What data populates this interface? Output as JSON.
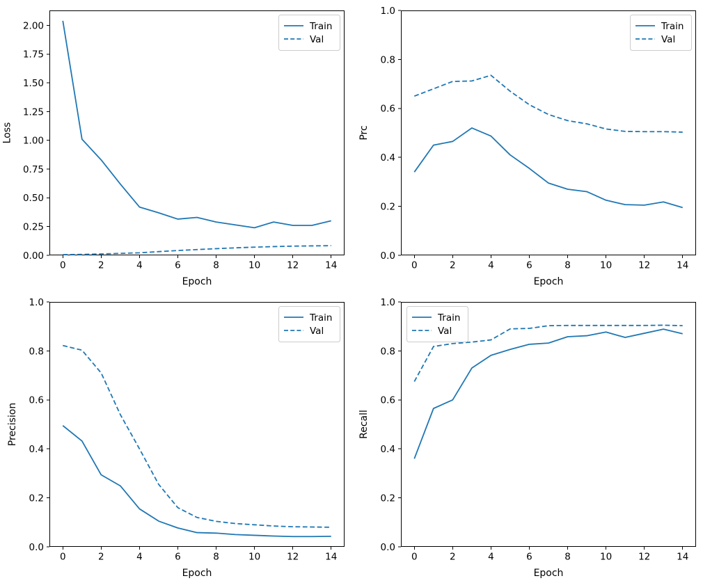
{
  "figure": {
    "background": "#ffffff",
    "text_color": "#000000",
    "spine_color": "#000000",
    "legend_edge_color": "#cccccc",
    "legend_face_color": "#ffffff"
  },
  "series_color": "#1f77b4",
  "chart_data": [
    {
      "type": "line",
      "title": "",
      "xlabel": "Epoch",
      "ylabel": "Loss",
      "legend_loc": "upper right",
      "grid": false,
      "xlim": [
        -0.7,
        14.7
      ],
      "ylim": [
        0,
        2.13
      ],
      "xticks": [
        0,
        2,
        4,
        6,
        8,
        10,
        12,
        14
      ],
      "xtick_labels": [
        "0",
        "2",
        "4",
        "6",
        "8",
        "10",
        "12",
        "14"
      ],
      "yticks": [
        0.0,
        0.25,
        0.5,
        0.75,
        1.0,
        1.25,
        1.5,
        1.75,
        2.0
      ],
      "ytick_labels": [
        "0.00",
        "0.25",
        "0.50",
        "0.75",
        "1.00",
        "1.25",
        "1.50",
        "1.75",
        "2.00"
      ],
      "x": [
        0,
        1,
        2,
        3,
        4,
        5,
        6,
        7,
        8,
        9,
        10,
        11,
        12,
        13,
        14
      ],
      "series": [
        {
          "name": "Train",
          "style": "solid",
          "values": [
            2.04,
            1.01,
            0.83,
            0.62,
            0.42,
            0.37,
            0.315,
            0.33,
            0.29,
            0.265,
            0.24,
            0.29,
            0.26,
            0.26,
            0.3
          ]
        },
        {
          "name": "Val",
          "style": "dashed",
          "values": [
            0.006,
            0.008,
            0.012,
            0.017,
            0.022,
            0.032,
            0.042,
            0.05,
            0.058,
            0.065,
            0.071,
            0.076,
            0.08,
            0.082,
            0.084
          ]
        }
      ]
    },
    {
      "type": "line",
      "title": "",
      "xlabel": "Epoch",
      "ylabel": "Prc",
      "legend_loc": "upper right",
      "grid": false,
      "xlim": [
        -0.7,
        14.7
      ],
      "ylim": [
        0,
        1
      ],
      "xticks": [
        0,
        2,
        4,
        6,
        8,
        10,
        12,
        14
      ],
      "xtick_labels": [
        "0",
        "2",
        "4",
        "6",
        "8",
        "10",
        "12",
        "14"
      ],
      "yticks": [
        0.0,
        0.2,
        0.4,
        0.6,
        0.8,
        1.0
      ],
      "ytick_labels": [
        "0.0",
        "0.2",
        "0.4",
        "0.6",
        "0.8",
        "1.0"
      ],
      "x": [
        0,
        1,
        2,
        3,
        4,
        5,
        6,
        7,
        8,
        9,
        10,
        11,
        12,
        13,
        14
      ],
      "series": [
        {
          "name": "Train",
          "style": "solid",
          "values": [
            0.34,
            0.45,
            0.465,
            0.52,
            0.487,
            0.41,
            0.355,
            0.295,
            0.27,
            0.26,
            0.225,
            0.207,
            0.205,
            0.218,
            0.195
          ]
        },
        {
          "name": "Val",
          "style": "dashed",
          "values": [
            0.65,
            0.68,
            0.71,
            0.712,
            0.735,
            0.67,
            0.615,
            0.575,
            0.55,
            0.537,
            0.516,
            0.506,
            0.505,
            0.505,
            0.503
          ]
        }
      ]
    },
    {
      "type": "line",
      "title": "",
      "xlabel": "Epoch",
      "ylabel": "Precision",
      "legend_loc": "upper right",
      "grid": false,
      "xlim": [
        -0.7,
        14.7
      ],
      "ylim": [
        0,
        1
      ],
      "xticks": [
        0,
        2,
        4,
        6,
        8,
        10,
        12,
        14
      ],
      "xtick_labels": [
        "0",
        "2",
        "4",
        "6",
        "8",
        "10",
        "12",
        "14"
      ],
      "yticks": [
        0.0,
        0.2,
        0.4,
        0.6,
        0.8,
        1.0
      ],
      "ytick_labels": [
        "0.0",
        "0.2",
        "0.4",
        "0.6",
        "0.8",
        "1.0"
      ],
      "x": [
        0,
        1,
        2,
        3,
        4,
        5,
        6,
        7,
        8,
        9,
        10,
        11,
        12,
        13,
        14
      ],
      "series": [
        {
          "name": "Train",
          "style": "solid",
          "values": [
            0.495,
            0.432,
            0.294,
            0.249,
            0.155,
            0.105,
            0.077,
            0.058,
            0.056,
            0.05,
            0.047,
            0.044,
            0.042,
            0.042,
            0.043
          ]
        },
        {
          "name": "Val",
          "style": "dashed",
          "values": [
            0.822,
            0.803,
            0.71,
            0.54,
            0.4,
            0.255,
            0.16,
            0.12,
            0.104,
            0.095,
            0.09,
            0.085,
            0.082,
            0.081,
            0.08
          ]
        }
      ]
    },
    {
      "type": "line",
      "title": "",
      "xlabel": "Epoch",
      "ylabel": "Recall",
      "legend_loc": "upper left",
      "grid": false,
      "xlim": [
        -0.7,
        14.7
      ],
      "ylim": [
        0,
        1
      ],
      "xticks": [
        0,
        2,
        4,
        6,
        8,
        10,
        12,
        14
      ],
      "xtick_labels": [
        "0",
        "2",
        "4",
        "6",
        "8",
        "10",
        "12",
        "14"
      ],
      "yticks": [
        0.0,
        0.2,
        0.4,
        0.6,
        0.8,
        1.0
      ],
      "ytick_labels": [
        "0.0",
        "0.2",
        "0.4",
        "0.6",
        "0.8",
        "1.0"
      ],
      "x": [
        0,
        1,
        2,
        3,
        4,
        5,
        6,
        7,
        8,
        9,
        10,
        11,
        12,
        13,
        14
      ],
      "series": [
        {
          "name": "Train",
          "style": "solid",
          "values": [
            0.36,
            0.565,
            0.6,
            0.73,
            0.782,
            0.806,
            0.827,
            0.832,
            0.858,
            0.862,
            0.877,
            0.855,
            0.872,
            0.889,
            0.87
          ]
        },
        {
          "name": "Val",
          "style": "dashed",
          "values": [
            0.675,
            0.818,
            0.83,
            0.836,
            0.845,
            0.89,
            0.892,
            0.903,
            0.904,
            0.904,
            0.904,
            0.904,
            0.904,
            0.905,
            0.903
          ]
        }
      ]
    }
  ]
}
